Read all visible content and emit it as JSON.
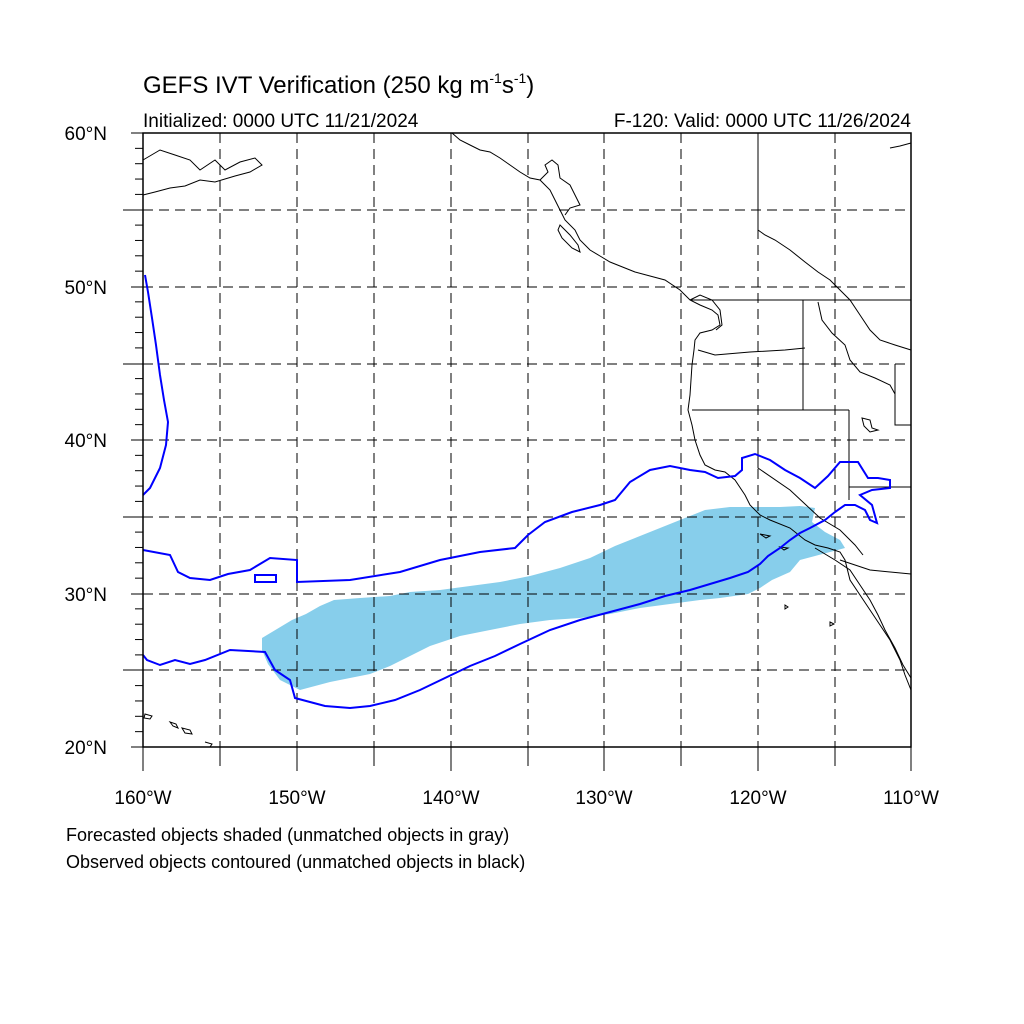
{
  "title": {
    "main": "GEFS IVT Verification (250 kg m",
    "exp1": "-1",
    "mid": "s",
    "exp2": "-1",
    "close": ")"
  },
  "initialized": "Initialized: 0000 UTC 11/21/2024",
  "valid": "F-120: Valid: 0000 UTC 11/26/2024",
  "lat_labels": [
    "60°N",
    "50°N",
    "40°N",
    "30°N",
    "20°N"
  ],
  "lon_labels": [
    "160°W",
    "150°W",
    "140°W",
    "130°W",
    "120°W",
    "110°W"
  ],
  "notes": [
    "Forecasted objects shaded (unmatched objects in gray)",
    "Observed objects contoured (unmatched objects in black)"
  ],
  "colors": {
    "forecast_fill": "#87ceeb",
    "observed_contour": "#0000ff",
    "grid": "#000000",
    "coast": "#000000"
  },
  "map_extent": {
    "lon_min": -160,
    "lon_max": -110,
    "lat_min": 20,
    "lat_max": 60
  }
}
